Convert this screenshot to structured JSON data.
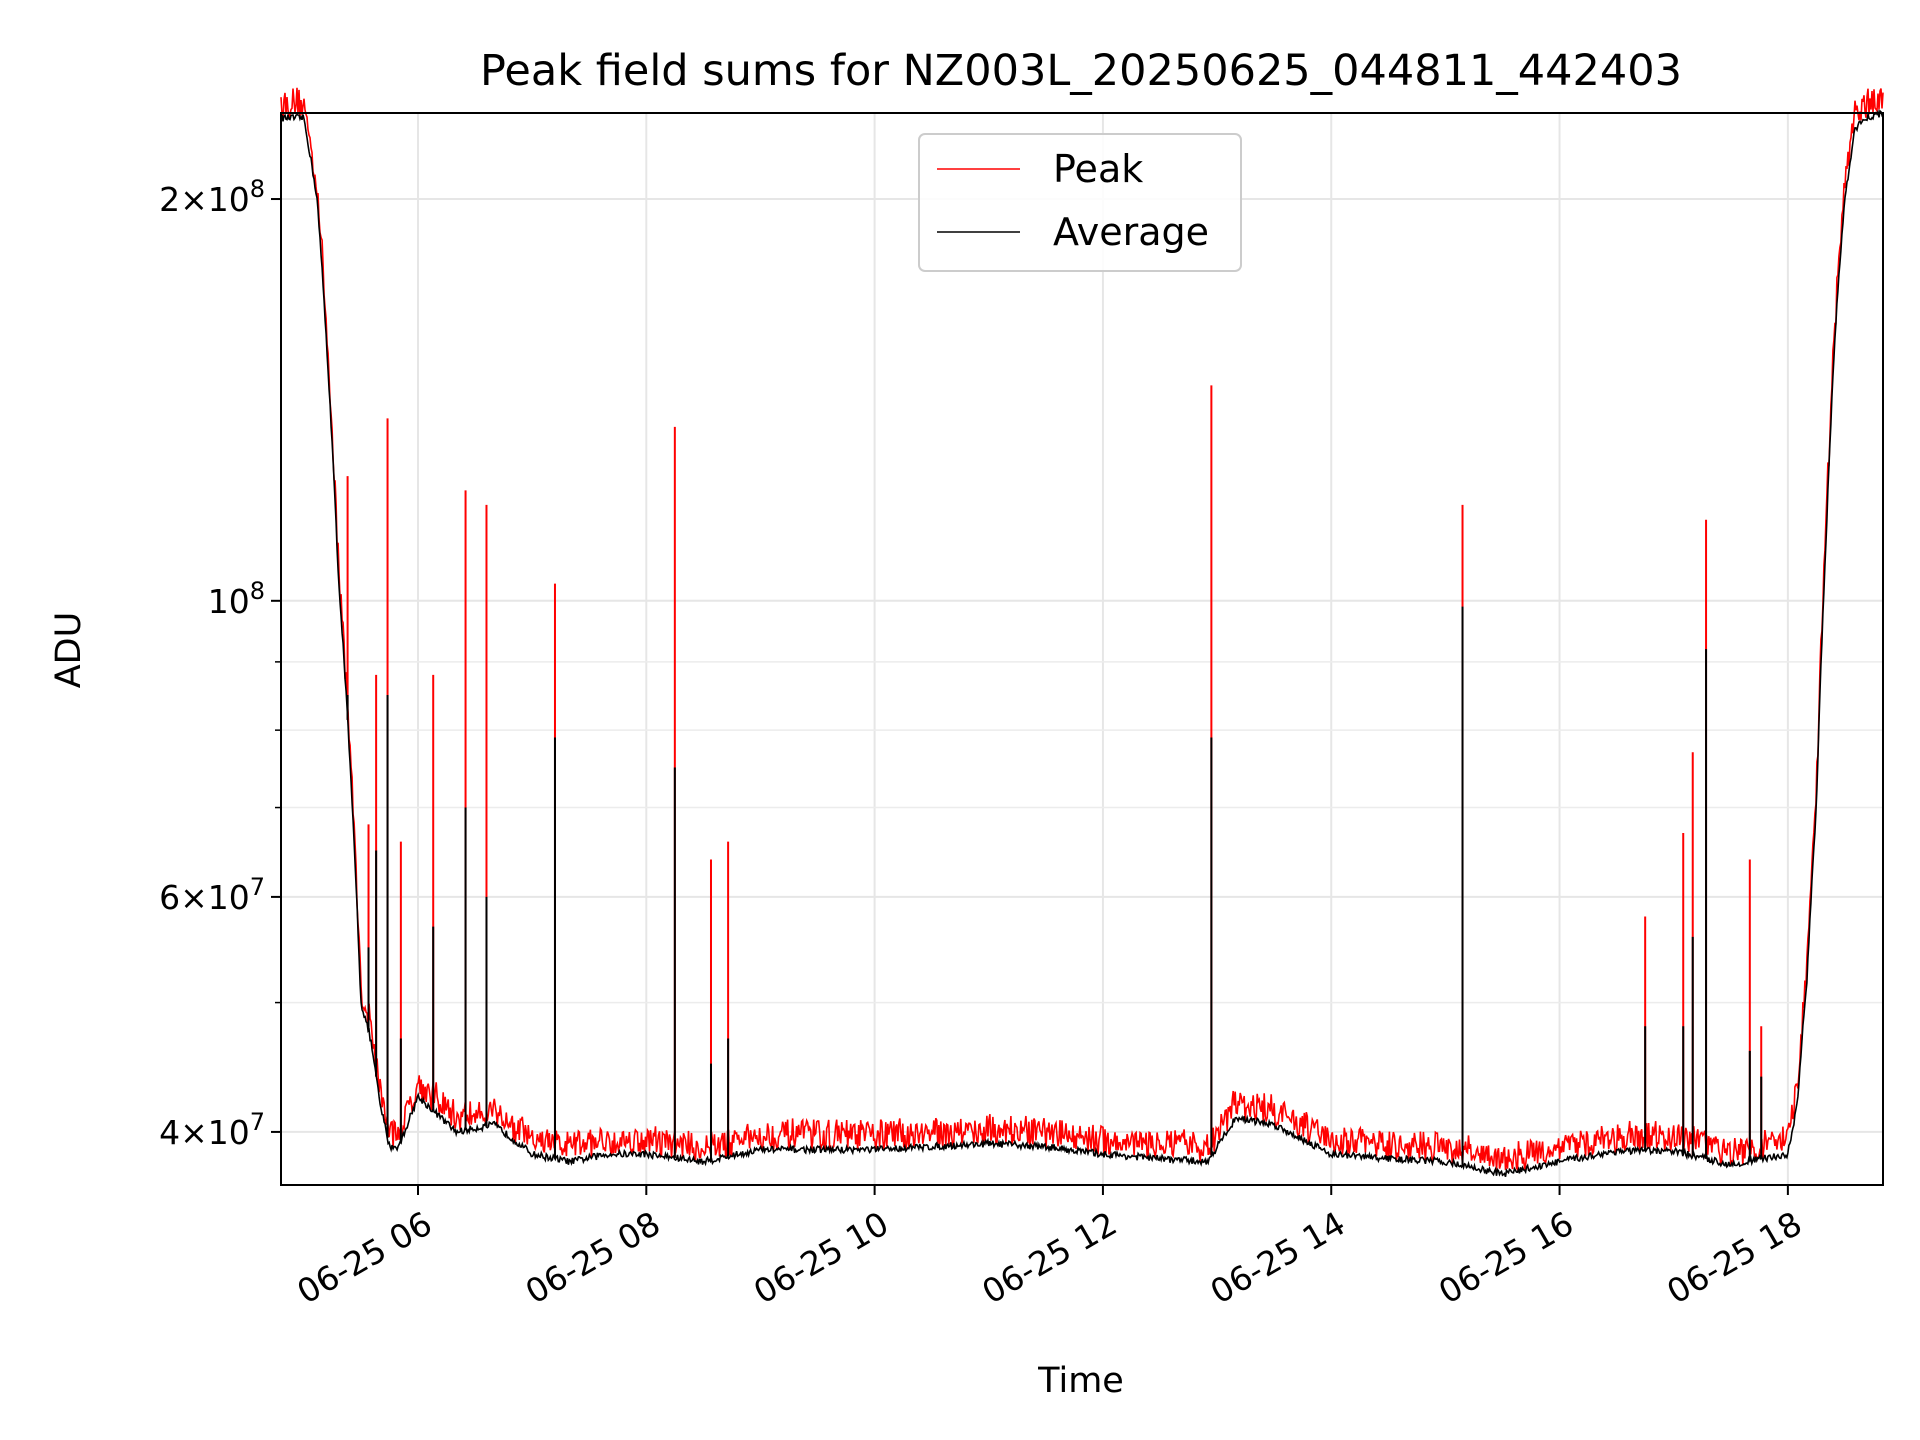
{
  "chart_data": {
    "type": "line",
    "title": "Peak field sums for NZ003L_20250625_044811_442403",
    "xlabel": "Time",
    "ylabel": "ADU",
    "y_scale": "log",
    "ylim": [
      36500000,
      232000000
    ],
    "xlim": [
      "2025-06-25 04:48",
      "2025-06-25 18:50"
    ],
    "grid": true,
    "legend_position": "upper center",
    "x_ticks": [
      {
        "value": "2025-06-25 06:00",
        "label": "06-25 06"
      },
      {
        "value": "2025-06-25 08:00",
        "label": "06-25 08"
      },
      {
        "value": "2025-06-25 10:00",
        "label": "06-25 10"
      },
      {
        "value": "2025-06-25 12:00",
        "label": "06-25 12"
      },
      {
        "value": "2025-06-25 14:00",
        "label": "06-25 14"
      },
      {
        "value": "2025-06-25 16:00",
        "label": "06-25 16"
      },
      {
        "value": "2025-06-25 18:00",
        "label": "06-25 18"
      }
    ],
    "y_major_ticks": [
      {
        "value": 40000000,
        "base": "4",
        "exp": "7"
      },
      {
        "value": 60000000,
        "base": "6",
        "exp": "7"
      },
      {
        "value": 100000000,
        "base": "",
        "exp": "8"
      },
      {
        "value": 200000000,
        "base": "2",
        "exp": "8"
      }
    ],
    "y_minor_ticks": [
      50000000,
      70000000,
      80000000,
      90000000
    ],
    "series": [
      {
        "name": "Peak",
        "color": "#ff0000"
      },
      {
        "name": "Average",
        "color": "#000000"
      }
    ],
    "baseline": {
      "x": [
        "2025-06-25 04:48",
        "2025-06-25 05:00",
        "2025-06-25 05:07",
        "2025-06-25 05:12",
        "2025-06-25 05:18",
        "2025-06-25 05:25",
        "2025-06-25 05:30",
        "2025-06-25 05:35",
        "2025-06-25 05:40",
        "2025-06-25 05:45",
        "2025-06-25 05:50",
        "2025-06-25 06:00",
        "2025-06-25 06:20",
        "2025-06-25 06:40",
        "2025-06-25 07:00",
        "2025-06-25 07:20",
        "2025-06-25 07:40",
        "2025-06-25 08:00",
        "2025-06-25 08:30",
        "2025-06-25 09:00",
        "2025-06-25 10:00",
        "2025-06-25 11:00",
        "2025-06-25 11:30",
        "2025-06-25 12:00",
        "2025-06-25 12:30",
        "2025-06-25 12:55",
        "2025-06-25 13:10",
        "2025-06-25 13:30",
        "2025-06-25 14:00",
        "2025-06-25 14:30",
        "2025-06-25 15:00",
        "2025-06-25 15:30",
        "2025-06-25 16:00",
        "2025-06-25 16:30",
        "2025-06-25 17:00",
        "2025-06-25 17:30",
        "2025-06-25 18:00",
        "2025-06-25 18:05",
        "2025-06-25 18:10",
        "2025-06-25 18:15",
        "2025-06-25 18:20",
        "2025-06-25 18:25",
        "2025-06-25 18:30",
        "2025-06-25 18:35",
        "2025-06-25 18:40",
        "2025-06-25 18:50"
      ],
      "average": [
        230000000,
        230000000,
        200000000,
        155000000,
        105000000,
        72000000,
        50000000,
        47000000,
        42000000,
        39000000,
        39000000,
        42500000,
        40000000,
        40500000,
        38500000,
        38000000,
        38500000,
        38500000,
        38000000,
        38800000,
        38800000,
        39200000,
        39000000,
        38500000,
        38200000,
        38000000,
        41000000,
        40500000,
        38500000,
        38200000,
        38000000,
        37200000,
        38000000,
        38700000,
        38700000,
        37800000,
        38500000,
        42000000,
        52000000,
        70000000,
        110000000,
        160000000,
        200000000,
        225000000,
        230000000,
        232000000
      ]
    },
    "spikes": [
      {
        "t": "2025-06-25 05:23",
        "peak": 124000000,
        "average": 85000000
      },
      {
        "t": "2025-06-25 05:34",
        "peak": 68000000,
        "average": 55000000
      },
      {
        "t": "2025-06-25 05:38",
        "peak": 88000000,
        "average": 65000000
      },
      {
        "t": "2025-06-25 05:44",
        "peak": 137000000,
        "average": 85000000
      },
      {
        "t": "2025-06-25 05:51",
        "peak": 66000000,
        "average": 47000000
      },
      {
        "t": "2025-06-25 06:08",
        "peak": 88000000,
        "average": 57000000
      },
      {
        "t": "2025-06-25 06:25",
        "peak": 121000000,
        "average": 70000000
      },
      {
        "t": "2025-06-25 06:36",
        "peak": 118000000,
        "average": 60000000
      },
      {
        "t": "2025-06-25 07:12",
        "peak": 103000000,
        "average": 79000000
      },
      {
        "t": "2025-06-25 08:15",
        "peak": 135000000,
        "average": 75000000
      },
      {
        "t": "2025-06-25 08:34",
        "peak": 64000000,
        "average": 45000000
      },
      {
        "t": "2025-06-25 08:43",
        "peak": 66000000,
        "average": 47000000
      },
      {
        "t": "2025-06-25 12:57",
        "peak": 145000000,
        "average": 79000000
      },
      {
        "t": "2025-06-25 15:09",
        "peak": 118000000,
        "average": 99000000
      },
      {
        "t": "2025-06-25 16:45",
        "peak": 58000000,
        "average": 48000000
      },
      {
        "t": "2025-06-25 17:05",
        "peak": 67000000,
        "average": 48000000
      },
      {
        "t": "2025-06-25 17:10",
        "peak": 77000000,
        "average": 56000000
      },
      {
        "t": "2025-06-25 17:17",
        "peak": 115000000,
        "average": 92000000
      },
      {
        "t": "2025-06-25 17:40",
        "peak": 64000000,
        "average": 46000000
      },
      {
        "t": "2025-06-25 17:46",
        "peak": 48000000,
        "average": 44000000
      }
    ]
  }
}
